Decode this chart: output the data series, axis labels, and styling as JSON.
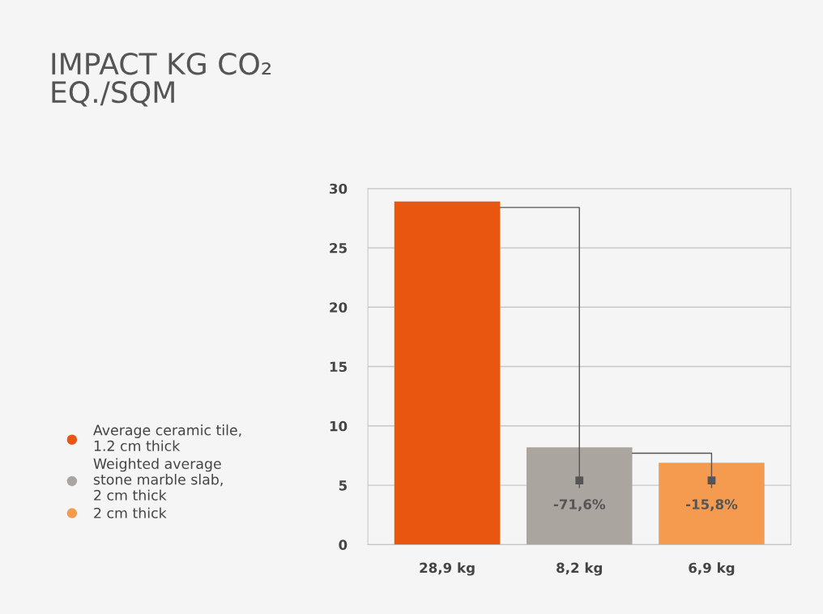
{
  "chart_data": {
    "type": "bar",
    "title": "IMPACT KG CO₂\nEQ./SQM",
    "categories": [
      null,
      null,
      null
    ],
    "series": [
      {
        "name": "Average ceramic tile,\n1.2 cm thick",
        "color": "#e8560f",
        "values": [
          28.9,
          null,
          null
        ],
        "value_labels": [
          "28,9 kg",
          null,
          null
        ]
      },
      {
        "name": "Weighted average\nstone marble slab,\n2 cm thick",
        "color": "#aaa59f",
        "values": [
          null,
          8.2,
          null
        ],
        "value_labels": [
          null,
          "8,2 kg",
          null
        ]
      },
      {
        "name": "2 cm thick",
        "color": "#f49b4f",
        "values": [
          null,
          null,
          6.9
        ],
        "value_labels": [
          null,
          null,
          "6,9 kg"
        ]
      }
    ],
    "annotations": [
      "-71,6%",
      "-15,8%"
    ],
    "ylim": [
      0,
      30
    ],
    "yticks": [
      0,
      5,
      10,
      15,
      20,
      25,
      30
    ],
    "grid": "y",
    "legend": "left"
  }
}
